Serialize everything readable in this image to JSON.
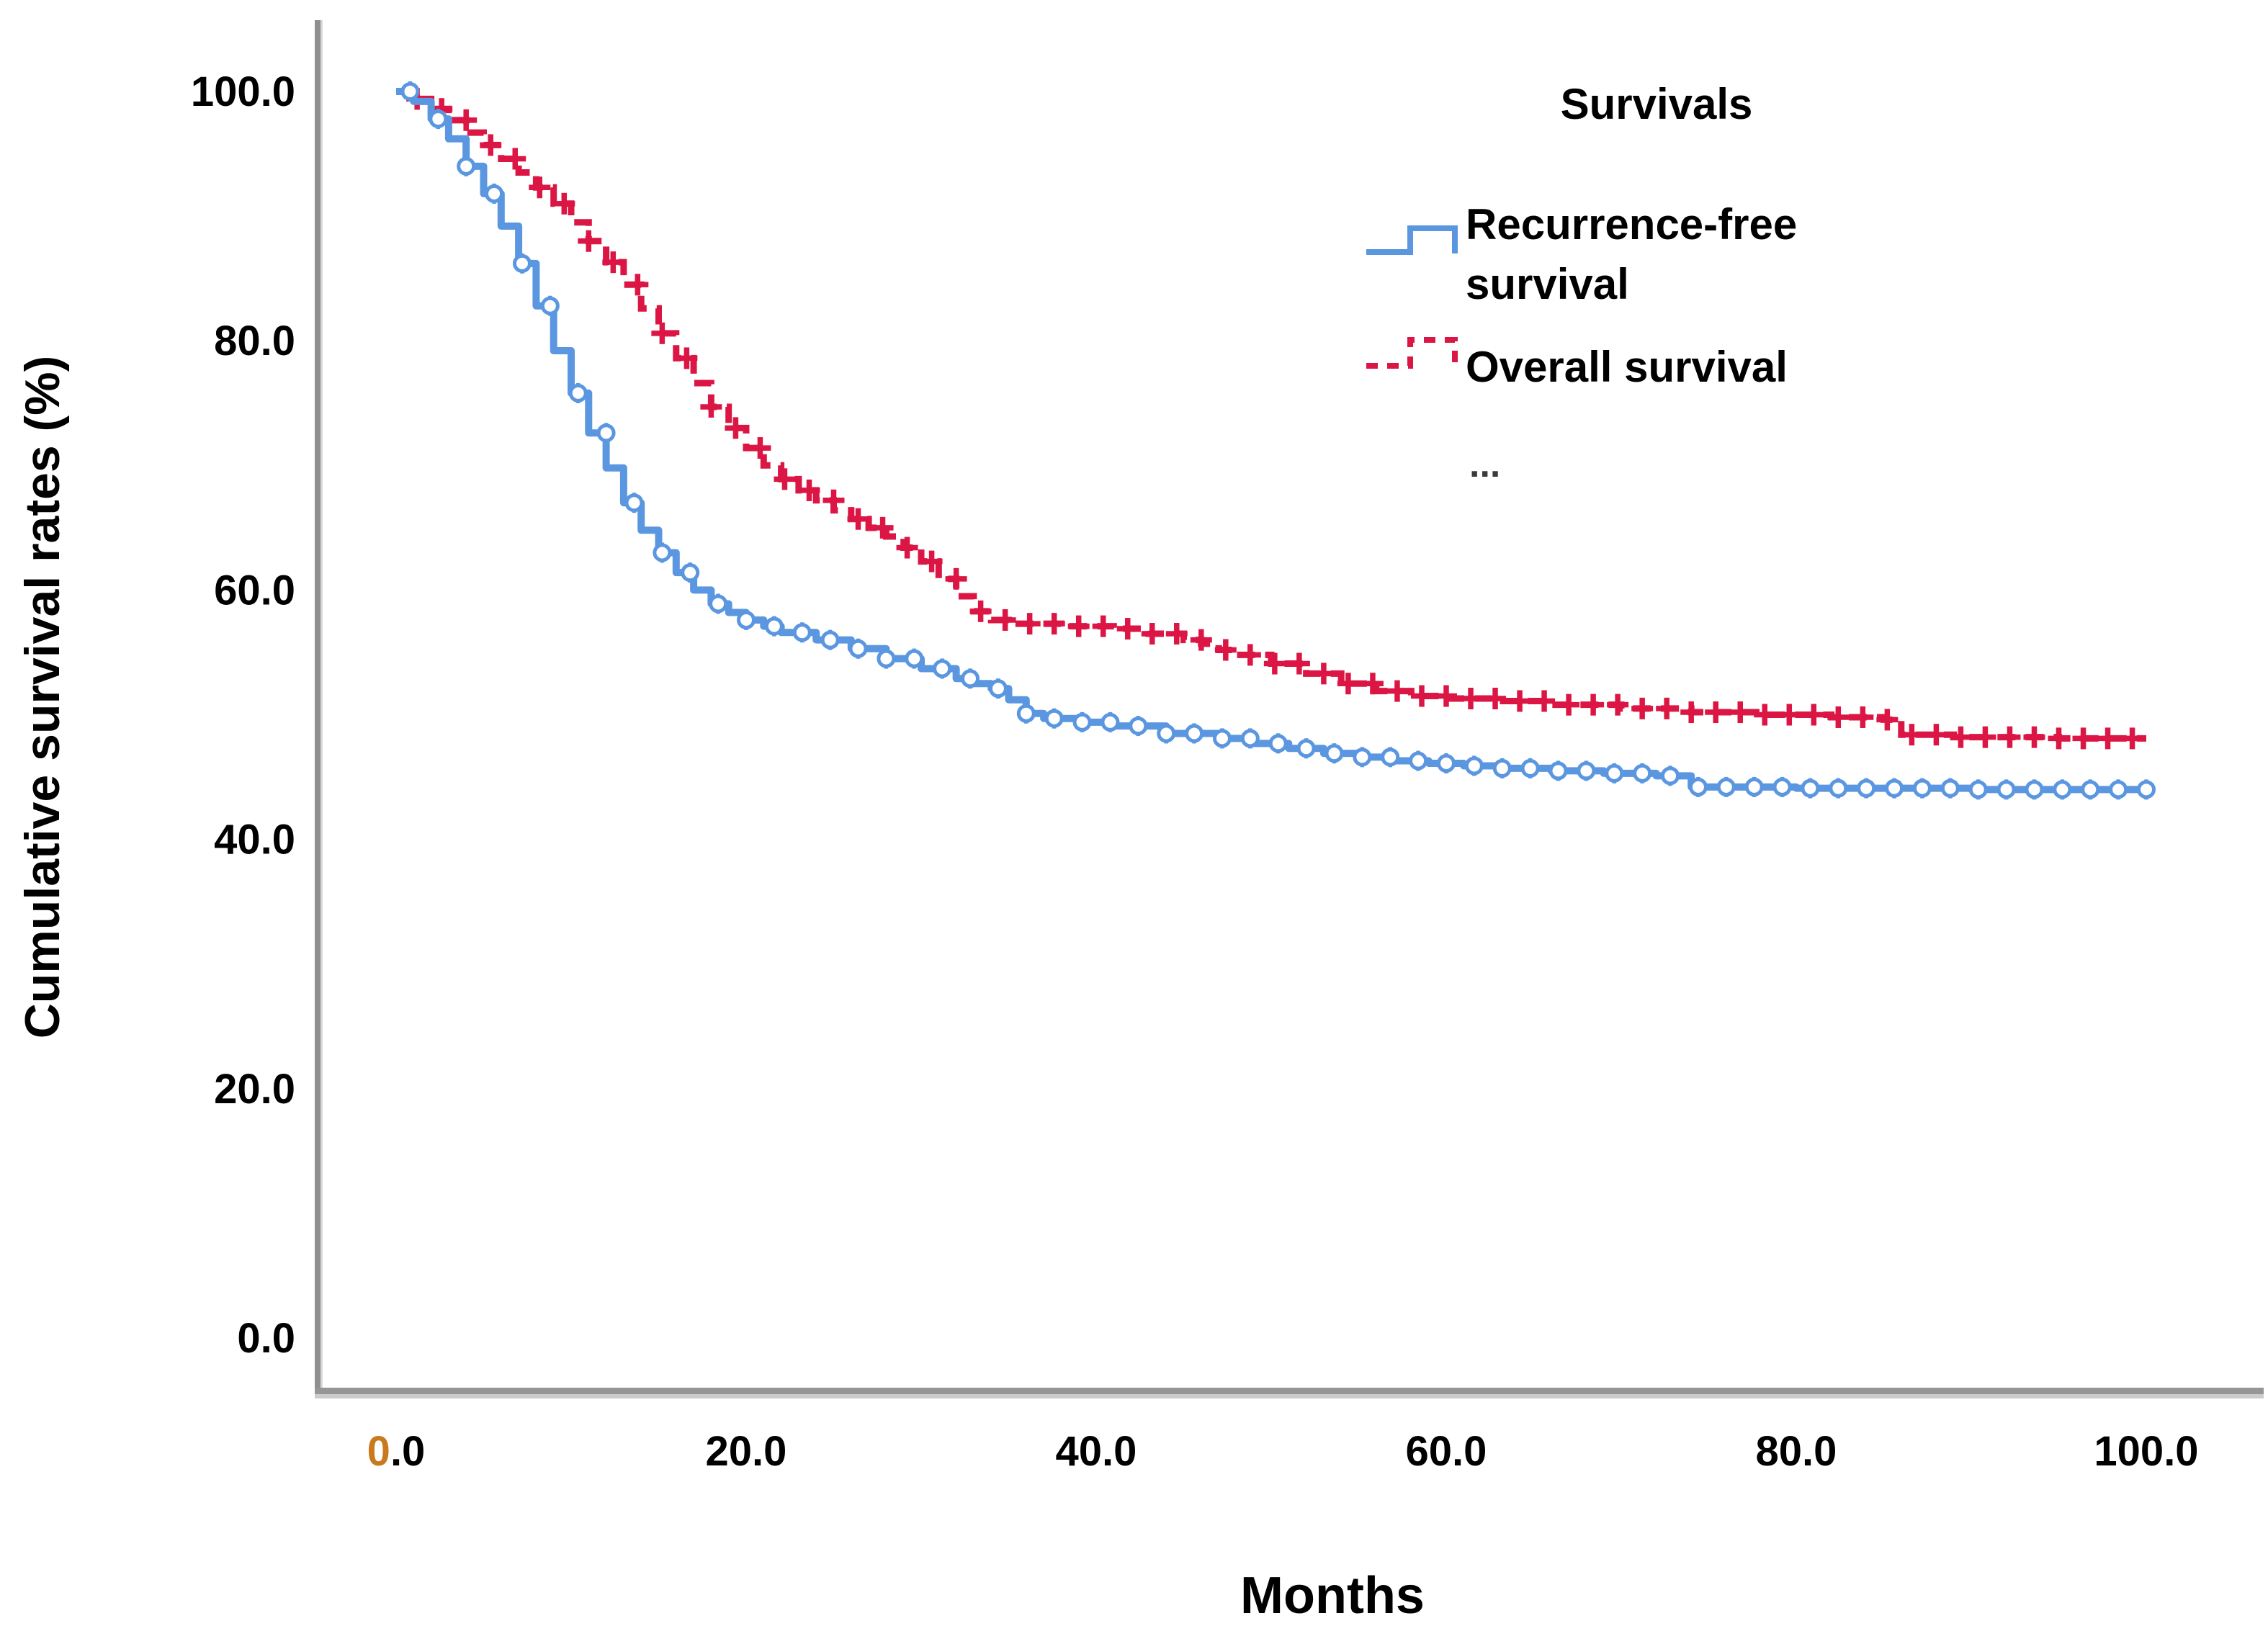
{
  "figure": {
    "y_axis_title": "Cumulative survival rates (%)",
    "x_axis_title": "Months",
    "y_tick_labels": [
      "100.0",
      "80.0",
      "60.0",
      "40.0",
      "20.0",
      "0.0"
    ],
    "y_tick_values": [
      100,
      80,
      60,
      40,
      20,
      0
    ],
    "x_tick_labels": [
      "0.0",
      "20.0",
      "40.0",
      "60.0",
      "80.0",
      "100.0"
    ],
    "x_tick_values": [
      0,
      20,
      40,
      60,
      80,
      100
    ],
    "legend": {
      "title": "Survivals",
      "item1_line1": "Recurrence-free",
      "item1_line2": "survival",
      "item2": "Overall survival",
      "ellipsis": "..."
    },
    "colors": {
      "recurrence_free": "#5b97e0",
      "overall": "#dc1644",
      "axis_gray": "#8f8f8f",
      "axis_gray_light": "#cccccc",
      "tick_zero_orange": "#c97a1d"
    }
  },
  "chart_data": {
    "type": "line",
    "subtype": "kaplan-meier-step",
    "title": "",
    "xlabel": "Months",
    "ylabel": "Cumulative survival rates (%)",
    "xlim": [
      0,
      100
    ],
    "ylim": [
      0,
      100
    ],
    "grid": false,
    "legend_position": "top-right",
    "legend_title": "Survivals",
    "series": [
      {
        "name": "Recurrence-free survival",
        "color": "#5b97e0",
        "line_style": "solid-step",
        "marker": "open-circle-with-tick",
        "points": [
          [
            0,
            100
          ],
          [
            1,
            99.2
          ],
          [
            2,
            97.8
          ],
          [
            3,
            96.2
          ],
          [
            4,
            94
          ],
          [
            5,
            91.8
          ],
          [
            6,
            89.2
          ],
          [
            7,
            86.2
          ],
          [
            8,
            82.8
          ],
          [
            9,
            79.2
          ],
          [
            10,
            75.8
          ],
          [
            11,
            72.6
          ],
          [
            12,
            69.8
          ],
          [
            13,
            67
          ],
          [
            14,
            64.8
          ],
          [
            15,
            63
          ],
          [
            16,
            61.4
          ],
          [
            17,
            60
          ],
          [
            18,
            58.9
          ],
          [
            19,
            58.2
          ],
          [
            20,
            57.6
          ],
          [
            21,
            57.1
          ],
          [
            22,
            56.6
          ],
          [
            24,
            56
          ],
          [
            26,
            55.3
          ],
          [
            28,
            54.5
          ],
          [
            30,
            53.7
          ],
          [
            32,
            52.9
          ],
          [
            33,
            52.5
          ],
          [
            34,
            52.1
          ],
          [
            35,
            51.2
          ],
          [
            36,
            50.1
          ],
          [
            37,
            49.7
          ],
          [
            39,
            49.4
          ],
          [
            41,
            49.1
          ],
          [
            44,
            48.5
          ],
          [
            47,
            48.1
          ],
          [
            49,
            47.7
          ],
          [
            51,
            47.3
          ],
          [
            53,
            46.9
          ],
          [
            55,
            46.6
          ],
          [
            57,
            46.3
          ],
          [
            59,
            46.1
          ],
          [
            61,
            45.9
          ],
          [
            63,
            45.7
          ],
          [
            66,
            45.5
          ],
          [
            69,
            45.3
          ],
          [
            72,
            45.1
          ],
          [
            74,
            44.2
          ],
          [
            80,
            44.1
          ],
          [
            90,
            44
          ],
          [
            100,
            44
          ]
        ]
      },
      {
        "name": "Overall survival",
        "color": "#dc1644",
        "line_style": "dashed-step",
        "marker": "plus",
        "points": [
          [
            0,
            100
          ],
          [
            1,
            99.4
          ],
          [
            2,
            98.6
          ],
          [
            3,
            97.7
          ],
          [
            4,
            96.7
          ],
          [
            5,
            95.7
          ],
          [
            6,
            94.6
          ],
          [
            7,
            93.5
          ],
          [
            8,
            92.3
          ],
          [
            9,
            91
          ],
          [
            10,
            89.5
          ],
          [
            11,
            88
          ],
          [
            12,
            86.3
          ],
          [
            13,
            84.5
          ],
          [
            14,
            82.6
          ],
          [
            15,
            80.6
          ],
          [
            16,
            78.6
          ],
          [
            17,
            76.6
          ],
          [
            18,
            74.7
          ],
          [
            19,
            73
          ],
          [
            20,
            71.4
          ],
          [
            21,
            70
          ],
          [
            22,
            68.9
          ],
          [
            23,
            68
          ],
          [
            24,
            67.2
          ],
          [
            25,
            66.4
          ],
          [
            26,
            65.7
          ],
          [
            27,
            65
          ],
          [
            28,
            64.3
          ],
          [
            29,
            63.4
          ],
          [
            30,
            62.3
          ],
          [
            31,
            60.9
          ],
          [
            32,
            59.5
          ],
          [
            33,
            58.3
          ],
          [
            34,
            57.6
          ],
          [
            35,
            57.3
          ],
          [
            38,
            57.1
          ],
          [
            41,
            56.9
          ],
          [
            43,
            56.5
          ],
          [
            45,
            56
          ],
          [
            46,
            55.7
          ],
          [
            47,
            55.2
          ],
          [
            48,
            54.8
          ],
          [
            50,
            54.1
          ],
          [
            52,
            53.3
          ],
          [
            54,
            52.5
          ],
          [
            56,
            51.9
          ],
          [
            58,
            51.5
          ],
          [
            60,
            51.3
          ],
          [
            63,
            51.1
          ],
          [
            66,
            50.8
          ],
          [
            70,
            50.5
          ],
          [
            74,
            50.2
          ],
          [
            78,
            50
          ],
          [
            82,
            49.8
          ],
          [
            85,
            49.6
          ],
          [
            86,
            48.4
          ],
          [
            89,
            48.2
          ],
          [
            95,
            48.1
          ],
          [
            100,
            48.1
          ]
        ]
      }
    ]
  }
}
